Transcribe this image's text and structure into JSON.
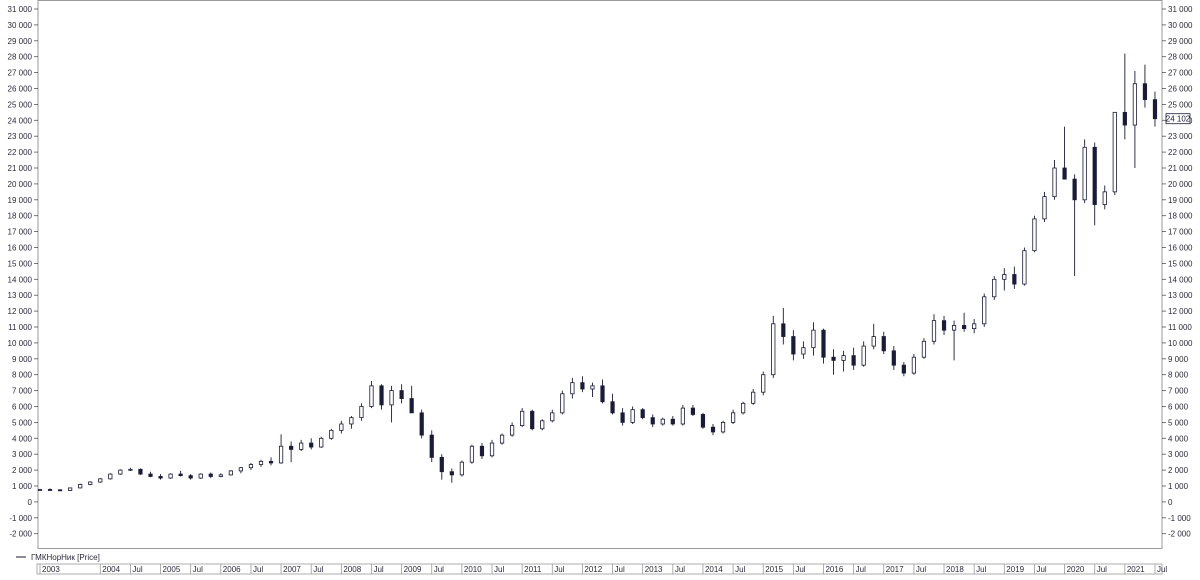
{
  "legend": {
    "label": "ГМКНорНик [Price]"
  },
  "last_price_label": "24 102",
  "colors": {
    "ink": "#1a1a3a",
    "up_fill": "#ffffff",
    "down_fill": "#1a1a3a",
    "frame": "#9a9a9a"
  },
  "chart_data": {
    "type": "candlestick",
    "title": "",
    "xlabel": "",
    "ylabel": "",
    "ylim": [
      -2500,
      31000
    ],
    "y_ticks": [
      {
        "value": 31000,
        "label": "31 000"
      },
      {
        "value": 30000,
        "label": "30 000"
      },
      {
        "value": 29000,
        "label": "29 000"
      },
      {
        "value": 28000,
        "label": "28 000"
      },
      {
        "value": 27000,
        "label": "27 000"
      },
      {
        "value": 26000,
        "label": "26 000"
      },
      {
        "value": 25000,
        "label": "25 000"
      },
      {
        "value": 24000,
        "label": "24 000"
      },
      {
        "value": 23000,
        "label": "23 000"
      },
      {
        "value": 22000,
        "label": "22 000"
      },
      {
        "value": 21000,
        "label": "21 000"
      },
      {
        "value": 20000,
        "label": "20 000"
      },
      {
        "value": 19000,
        "label": "19 000"
      },
      {
        "value": 18000,
        "label": "18 000"
      },
      {
        "value": 17000,
        "label": "17 000"
      },
      {
        "value": 16000,
        "label": "16 000"
      },
      {
        "value": 15000,
        "label": "15 000"
      },
      {
        "value": 14000,
        "label": "14 000"
      },
      {
        "value": 13000,
        "label": "13 000"
      },
      {
        "value": 12000,
        "label": "12 000"
      },
      {
        "value": 11000,
        "label": "11 000"
      },
      {
        "value": 10000,
        "label": "10 000"
      },
      {
        "value": 9000,
        "label": "9 000"
      },
      {
        "value": 8000,
        "label": "8 000"
      },
      {
        "value": 7000,
        "label": "7 000"
      },
      {
        "value": 6000,
        "label": "6 000"
      },
      {
        "value": 5000,
        "label": "5 000"
      },
      {
        "value": 4000,
        "label": "4 000"
      },
      {
        "value": 3000,
        "label": "3 000"
      },
      {
        "value": 2000,
        "label": "2 000"
      },
      {
        "value": 1000,
        "label": "1 000"
      },
      {
        "value": 0,
        "label": "0"
      },
      {
        "value": -1000,
        "label": "-1 000"
      },
      {
        "value": -2000,
        "label": "-2 000"
      }
    ],
    "x_labels": [
      {
        "date": "2003-01",
        "label": "2003"
      },
      {
        "date": "2004-01",
        "label": "2004"
      },
      {
        "date": "2004-07",
        "label": "Jul"
      },
      {
        "date": "2005-01",
        "label": "2005"
      },
      {
        "date": "2005-07",
        "label": "Jul"
      },
      {
        "date": "2006-01",
        "label": "2006"
      },
      {
        "date": "2006-07",
        "label": "Jul"
      },
      {
        "date": "2007-01",
        "label": "2007"
      },
      {
        "date": "2007-07",
        "label": "Jul"
      },
      {
        "date": "2008-01",
        "label": "2008"
      },
      {
        "date": "2008-07",
        "label": "Jul"
      },
      {
        "date": "2009-01",
        "label": "2009"
      },
      {
        "date": "2009-07",
        "label": "Jul"
      },
      {
        "date": "2010-01",
        "label": "2010"
      },
      {
        "date": "2010-07",
        "label": "Jul"
      },
      {
        "date": "2011-01",
        "label": "2011"
      },
      {
        "date": "2011-07",
        "label": "Jul"
      },
      {
        "date": "2012-01",
        "label": "2012"
      },
      {
        "date": "2012-07",
        "label": "Jul"
      },
      {
        "date": "2013-01",
        "label": "2013"
      },
      {
        "date": "2013-07",
        "label": "Jul"
      },
      {
        "date": "2014-01",
        "label": "2014"
      },
      {
        "date": "2014-07",
        "label": "Jul"
      },
      {
        "date": "2015-01",
        "label": "2015"
      },
      {
        "date": "2015-07",
        "label": "Jul"
      },
      {
        "date": "2016-01",
        "label": "2016"
      },
      {
        "date": "2016-07",
        "label": "Jul"
      },
      {
        "date": "2017-01",
        "label": "2017"
      },
      {
        "date": "2017-07",
        "label": "Jul"
      },
      {
        "date": "2018-01",
        "label": "2018"
      },
      {
        "date": "2018-07",
        "label": "Jul"
      },
      {
        "date": "2019-01",
        "label": "2019"
      },
      {
        "date": "2019-07",
        "label": "Jul"
      },
      {
        "date": "2020-01",
        "label": "2020"
      },
      {
        "date": "2020-07",
        "label": "Jul"
      },
      {
        "date": "2021-01",
        "label": "2021"
      },
      {
        "date": "2021-07",
        "label": "Jul"
      }
    ],
    "x_range": [
      "2003-01",
      "2021-08"
    ],
    "series": [
      {
        "columns": [
          "date",
          "open",
          "high",
          "low",
          "close"
        ],
        "values": [
          [
            "2003-01",
            750,
            820,
            700,
            780
          ],
          [
            "2003-03",
            780,
            850,
            720,
            760
          ],
          [
            "2003-05",
            760,
            800,
            700,
            720
          ],
          [
            "2003-07",
            720,
            900,
            700,
            880
          ],
          [
            "2003-09",
            880,
            1150,
            850,
            1100
          ],
          [
            "2003-11",
            1100,
            1300,
            1050,
            1250
          ],
          [
            "2004-01",
            1250,
            1500,
            1200,
            1450
          ],
          [
            "2004-03",
            1450,
            1800,
            1400,
            1750
          ],
          [
            "2004-05",
            1750,
            2050,
            1700,
            2000
          ],
          [
            "2004-07",
            2000,
            2150,
            1950,
            2050
          ],
          [
            "2004-09",
            2050,
            2100,
            1700,
            1750
          ],
          [
            "2004-11",
            1750,
            1900,
            1550,
            1600
          ],
          [
            "2005-01",
            1600,
            1750,
            1400,
            1500
          ],
          [
            "2005-03",
            1500,
            1800,
            1450,
            1750
          ],
          [
            "2005-05",
            1750,
            1950,
            1600,
            1650
          ],
          [
            "2005-07",
            1650,
            1750,
            1400,
            1500
          ],
          [
            "2005-09",
            1500,
            1800,
            1450,
            1750
          ],
          [
            "2005-11",
            1750,
            1850,
            1500,
            1600
          ],
          [
            "2006-01",
            1600,
            1800,
            1550,
            1700
          ],
          [
            "2006-03",
            1700,
            2000,
            1650,
            1950
          ],
          [
            "2006-05",
            1950,
            2200,
            1800,
            2150
          ],
          [
            "2006-07",
            2150,
            2450,
            2000,
            2350
          ],
          [
            "2006-09",
            2350,
            2650,
            2200,
            2550
          ],
          [
            "2006-11",
            2550,
            2800,
            2300,
            2450
          ],
          [
            "2007-01",
            2450,
            4250,
            2400,
            3500
          ],
          [
            "2007-03",
            3500,
            3800,
            2500,
            3300
          ],
          [
            "2007-05",
            3300,
            3900,
            3200,
            3700
          ],
          [
            "2007-07",
            3700,
            4000,
            3300,
            3450
          ],
          [
            "2007-09",
            3450,
            4100,
            3400,
            4000
          ],
          [
            "2007-11",
            4000,
            4600,
            3900,
            4500
          ],
          [
            "2008-01",
            4500,
            5100,
            4300,
            4900
          ],
          [
            "2008-03",
            4900,
            5400,
            4600,
            5300
          ],
          [
            "2008-05",
            5300,
            6200,
            5100,
            6000
          ],
          [
            "2008-07",
            6000,
            7600,
            5900,
            7300
          ],
          [
            "2008-09",
            7300,
            7400,
            5800,
            6100
          ],
          [
            "2008-11",
            6100,
            7300,
            5000,
            7000
          ],
          [
            "2009-01",
            7000,
            7400,
            6200,
            6500
          ],
          [
            "2009-03",
            6500,
            7300,
            5800,
            5600
          ],
          [
            "2009-05",
            5600,
            5800,
            4000,
            4200
          ],
          [
            "2009-07",
            4200,
            4500,
            2500,
            2800
          ],
          [
            "2009-09",
            2800,
            3000,
            1400,
            1900
          ],
          [
            "2009-11",
            1900,
            2100,
            1200,
            1700
          ],
          [
            "2010-01",
            1700,
            2600,
            1600,
            2500
          ],
          [
            "2010-03",
            2500,
            3600,
            2400,
            3500
          ],
          [
            "2010-05",
            3500,
            3700,
            2700,
            2900
          ],
          [
            "2010-07",
            2900,
            3900,
            2800,
            3700
          ],
          [
            "2010-09",
            3700,
            4300,
            3600,
            4200
          ],
          [
            "2010-11",
            4200,
            5000,
            4100,
            4800
          ],
          [
            "2011-01",
            4800,
            5900,
            4700,
            5700
          ],
          [
            "2011-03",
            5700,
            5800,
            4500,
            4600
          ],
          [
            "2011-05",
            4600,
            5200,
            4500,
            5100
          ],
          [
            "2011-07",
            5100,
            5800,
            5000,
            5600
          ],
          [
            "2011-09",
            5600,
            7000,
            5500,
            6800
          ],
          [
            "2011-11",
            6800,
            7800,
            6500,
            7500
          ],
          [
            "2012-01",
            7500,
            7900,
            6900,
            7100
          ],
          [
            "2012-03",
            7100,
            7500,
            6600,
            7300
          ],
          [
            "2012-05",
            7300,
            7700,
            6200,
            6300
          ],
          [
            "2012-07",
            6300,
            6800,
            5500,
            5600
          ],
          [
            "2012-09",
            5600,
            5900,
            4800,
            5000
          ],
          [
            "2012-11",
            5000,
            6000,
            4900,
            5800
          ],
          [
            "2013-01",
            5800,
            5900,
            5200,
            5300
          ],
          [
            "2013-03",
            5300,
            5500,
            4700,
            4900
          ],
          [
            "2013-05",
            4900,
            5300,
            4800,
            5200
          ],
          [
            "2013-07",
            5200,
            5400,
            4800,
            4900
          ],
          [
            "2013-09",
            4900,
            6100,
            4800,
            5900
          ],
          [
            "2013-11",
            5900,
            6100,
            5400,
            5500
          ],
          [
            "2014-01",
            5500,
            5600,
            4600,
            4700
          ],
          [
            "2014-03",
            4700,
            4900,
            4200,
            4400
          ],
          [
            "2014-05",
            4400,
            5100,
            4300,
            5000
          ],
          [
            "2014-07",
            5000,
            5800,
            4900,
            5600
          ],
          [
            "2014-09",
            5600,
            6300,
            5500,
            6200
          ],
          [
            "2014-11",
            6200,
            7100,
            6100,
            6900
          ],
          [
            "2015-01",
            6900,
            8200,
            6700,
            8000
          ],
          [
            "2015-03",
            8000,
            11700,
            7800,
            11200
          ],
          [
            "2015-05",
            11200,
            12200,
            9900,
            10400
          ],
          [
            "2015-07",
            10400,
            10800,
            8900,
            9300
          ],
          [
            "2015-09",
            9300,
            10100,
            9000,
            9700
          ],
          [
            "2015-11",
            9700,
            11300,
            9200,
            10800
          ],
          [
            "2016-01",
            10800,
            10900,
            8700,
            9100
          ],
          [
            "2016-03",
            9100,
            9600,
            8000,
            8900
          ],
          [
            "2016-05",
            8900,
            9500,
            8200,
            9200
          ],
          [
            "2016-07",
            9200,
            9700,
            8300,
            8600
          ],
          [
            "2016-09",
            8600,
            10100,
            8500,
            9800
          ],
          [
            "2016-11",
            9800,
            11200,
            9600,
            10400
          ],
          [
            "2017-01",
            10400,
            10700,
            9300,
            9500
          ],
          [
            "2017-03",
            9500,
            9800,
            8300,
            8600
          ],
          [
            "2017-05",
            8600,
            8800,
            7900,
            8100
          ],
          [
            "2017-07",
            8100,
            9300,
            8000,
            9100
          ],
          [
            "2017-09",
            9100,
            10300,
            9000,
            10100
          ],
          [
            "2017-11",
            10100,
            11800,
            9900,
            11400
          ],
          [
            "2018-01",
            11400,
            11700,
            10500,
            10800
          ],
          [
            "2018-03",
            10800,
            11400,
            8900,
            11100
          ],
          [
            "2018-05",
            11100,
            11900,
            10700,
            10900
          ],
          [
            "2018-07",
            10900,
            11500,
            10600,
            11200
          ],
          [
            "2018-09",
            11200,
            13100,
            11000,
            12900
          ],
          [
            "2018-11",
            12900,
            14200,
            12700,
            14000
          ],
          [
            "2019-01",
            14000,
            14700,
            13300,
            14300
          ],
          [
            "2019-03",
            14300,
            14800,
            13400,
            13700
          ],
          [
            "2019-05",
            13700,
            16000,
            13600,
            15800
          ],
          [
            "2019-07",
            15800,
            18000,
            15700,
            17800
          ],
          [
            "2019-09",
            17800,
            19500,
            17600,
            19200
          ],
          [
            "2019-11",
            19200,
            21500,
            19000,
            21000
          ],
          [
            "2020-01",
            21000,
            23600,
            20500,
            20300
          ],
          [
            "2020-03",
            20300,
            20600,
            14200,
            19000
          ],
          [
            "2020-05",
            19000,
            22800,
            18800,
            22300
          ],
          [
            "2020-07",
            22300,
            22600,
            17400,
            18700
          ],
          [
            "2020-09",
            18700,
            19900,
            18400,
            19500
          ],
          [
            "2020-11",
            19500,
            23200,
            19300,
            24500
          ],
          [
            "2021-01",
            24500,
            28200,
            22800,
            23700
          ],
          [
            "2021-03",
            23700,
            27100,
            21000,
            26300
          ],
          [
            "2021-05",
            26300,
            27500,
            24800,
            25300
          ],
          [
            "2021-07",
            25300,
            25800,
            23600,
            24100
          ]
        ]
      }
    ]
  }
}
